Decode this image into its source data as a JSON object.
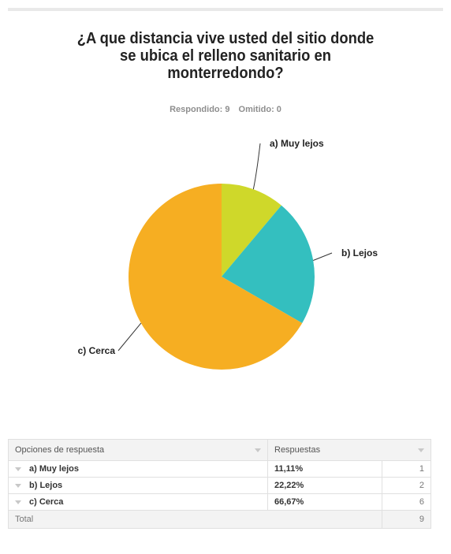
{
  "survey": {
    "title_lines": [
      "¿A que distancia vive usted del sitio donde",
      "se ubica el relleno sanitario en",
      "monterredondo?"
    ],
    "answered": "Respondido: 9",
    "skipped": "Omitido: 0"
  },
  "chart_data": {
    "type": "pie",
    "categories": [
      "a) Muy lejos",
      "b) Lejos",
      "c) Cerca"
    ],
    "values": [
      11.11,
      22.22,
      66.67
    ],
    "colors": [
      "#cfd82a",
      "#34bfbf",
      "#f6ae22"
    ],
    "title": "¿A que distancia vive usted del sitio donde se ubica el relleno sanitario en monterredondo?"
  },
  "table": {
    "headers": [
      "Opciones de respuesta",
      "Respuestas"
    ],
    "rows": [
      {
        "label": "a) Muy lejos",
        "percent": "11,11%",
        "count": "1"
      },
      {
        "label": "b) Lejos",
        "percent": "22,22%",
        "count": "2"
      },
      {
        "label": "c) Cerca",
        "percent": "66,67%",
        "count": "6"
      }
    ],
    "total_label": "Total",
    "total_count": "9"
  }
}
